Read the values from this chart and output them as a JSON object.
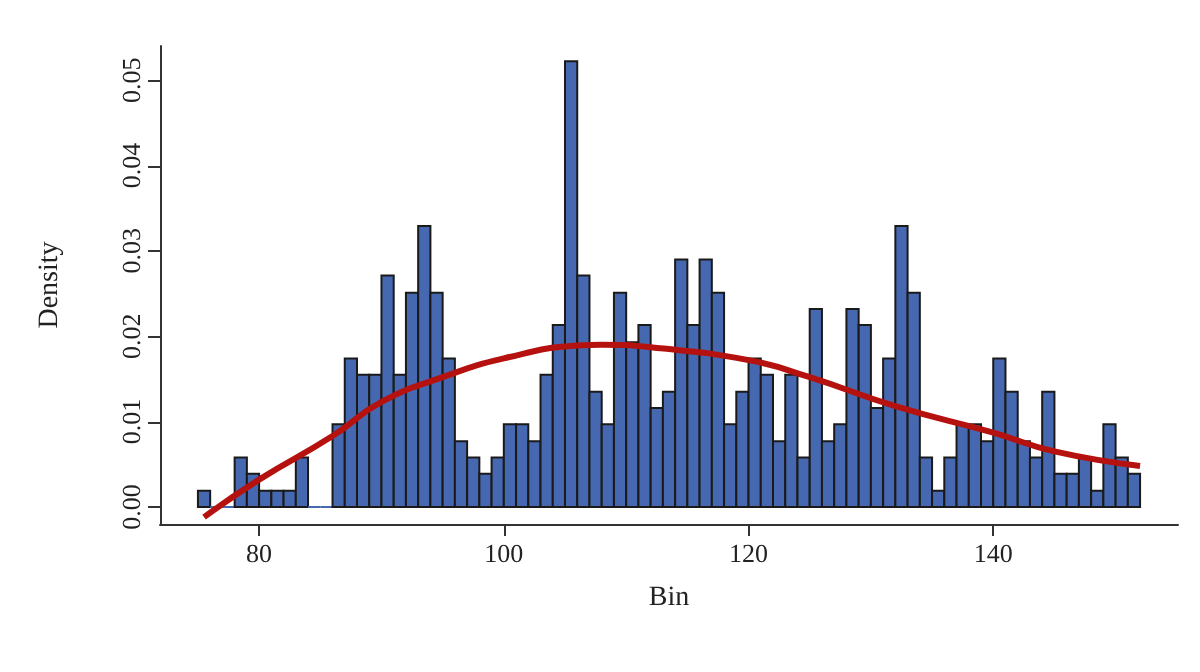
{
  "chart_data": {
    "type": "histogram",
    "xlabel": "Bin",
    "ylabel": "Density",
    "color": "#4668b0",
    "bins": [
      75,
      76,
      77,
      78,
      79,
      80,
      81,
      82,
      83,
      84,
      85,
      86,
      87,
      88,
      89,
      90,
      91,
      92,
      93,
      94,
      95,
      96,
      97,
      98,
      99,
      100,
      101,
      102,
      103,
      104,
      105,
      106,
      107,
      108,
      109,
      110,
      111,
      112,
      113,
      114,
      115,
      116,
      117,
      118,
      119,
      120,
      121,
      122,
      123,
      124,
      125,
      126,
      127,
      128,
      129,
      130,
      131,
      132,
      133,
      134,
      135,
      136,
      137,
      138,
      139,
      140,
      141,
      142,
      143,
      144,
      145,
      146,
      147,
      148,
      149,
      150,
      151,
      152
    ],
    "values": [
      0.0019,
      0,
      0,
      0.0058,
      0.0039,
      0.0019,
      0.0019,
      0.0019,
      0.0058,
      0,
      0,
      0.0097,
      0.0174,
      0.0155,
      0.0155,
      0.0271,
      0.0155,
      0.0251,
      0.0329,
      0.0251,
      0.0174,
      0.0077,
      0.0058,
      0.0039,
      0.0058,
      0.0097,
      0.0097,
      0.0077,
      0.0155,
      0.0213,
      0.0522,
      0.0271,
      0.0135,
      0.0097,
      0.0251,
      0.0193,
      0.0213,
      0.0116,
      0.0135,
      0.029,
      0.0213,
      0.029,
      0.0251,
      0.0097,
      0.0135,
      0.0174,
      0.0155,
      0.0077,
      0.0155,
      0.0058,
      0.0232,
      0.0077,
      0.0097,
      0.0232,
      0.0213,
      0.0116,
      0.0174,
      0.0329,
      0.0251,
      0.0058,
      0.0019,
      0.0058,
      0.0097,
      0.0097,
      0.0077,
      0.0174,
      0.0135,
      0.0077,
      0.0058,
      0.0135,
      0.0039,
      0.0039,
      0.0058,
      0.0019,
      0.0097,
      0.0058,
      0.0039
    ],
    "series": [
      {
        "type": "line",
        "color": "#b5120f",
        "x": [
          75.5,
          80,
          86,
          90,
          95,
          100,
          106,
          108,
          112,
          120,
          125,
          132,
          140,
          145,
          152
        ],
        "values": [
          -0.0012,
          0.0032,
          0.0083,
          0.0123,
          0.0152,
          0.0174,
          0.0189,
          0.019,
          0.0187,
          0.0172,
          0.0152,
          0.0118,
          0.0087,
          0.0065,
          0.0048
        ]
      }
    ],
    "xlim": [
      71.9,
      155.1
    ],
    "ylim": [
      -0.002,
      0.054
    ],
    "xticks": [
      80,
      100,
      120,
      140
    ],
    "yticks": [
      {
        "value": 0,
        "label": "0.00"
      },
      {
        "value": 0.01,
        "label": "0.01"
      },
      {
        "value": 0.02,
        "label": "0.02"
      },
      {
        "value": 0.03,
        "label": "0.03"
      },
      {
        "value": 0.04,
        "label": "0.04"
      },
      {
        "value": 0.05,
        "label": "0.05"
      }
    ]
  }
}
